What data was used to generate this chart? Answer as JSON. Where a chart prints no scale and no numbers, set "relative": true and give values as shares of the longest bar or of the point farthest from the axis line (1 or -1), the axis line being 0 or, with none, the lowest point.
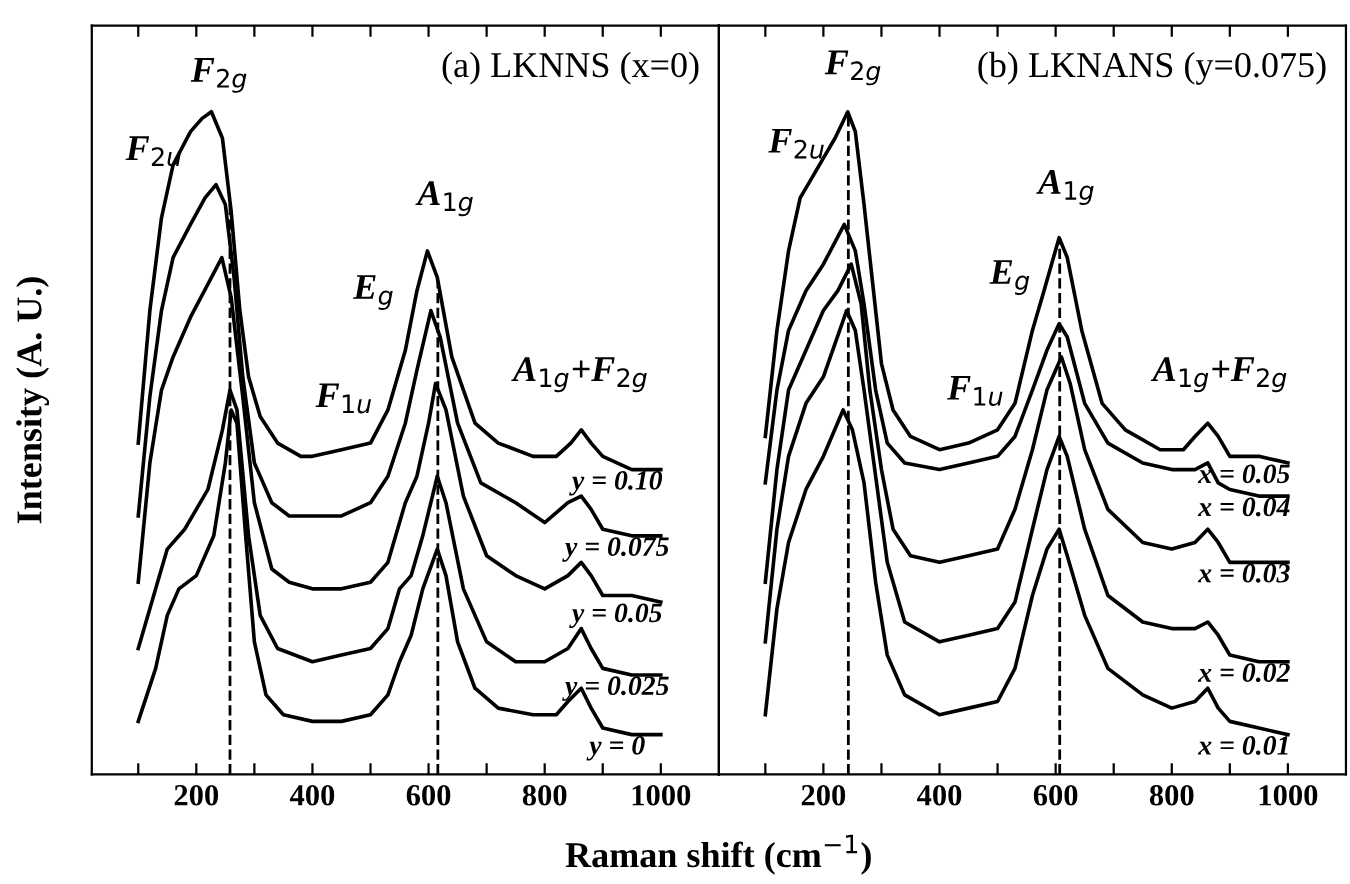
{
  "chart_data": [
    {
      "type": "line",
      "title": "(a) LKNNS (x=0)",
      "xlabel": "Raman shift (cm$^{−1}$)",
      "ylabel": "Intensity (A. U.)",
      "relative": true,
      "xlim": [
        20,
        1100
      ],
      "xticks": [
        {
          "value": 100,
          "label": null
        },
        200,
        {
          "value": 300,
          "label": null
        },
        400,
        {
          "value": 500,
          "label": null
        },
        600,
        {
          "value": 700,
          "label": null
        },
        800,
        {
          "value": 900,
          "label": null
        },
        1000
      ],
      "tick_labels": "x",
      "grid": false,
      "legend": false,
      "marker": "none",
      "line_style": "solid",
      "series": [
        {
          "name": "y = 0.10",
          "color": "#000000",
          "x": [
            100,
            120,
            140,
            160,
            190,
            210,
            226,
            245,
            260,
            275,
            290,
            310,
            340,
            380,
            400,
            450,
            500,
            530,
            560,
            580,
            598,
            615,
            640,
            680,
            720,
            780,
            820,
            845,
            863,
            880,
            900,
            950,
            1000
          ],
          "values": [
            0.5,
            0.7,
            0.84,
            0.92,
            0.97,
            0.99,
            1.0,
            0.96,
            0.85,
            0.7,
            0.6,
            0.54,
            0.5,
            0.48,
            0.48,
            0.49,
            0.5,
            0.55,
            0.64,
            0.73,
            0.79,
            0.75,
            0.63,
            0.53,
            0.5,
            0.48,
            0.48,
            0.5,
            0.52,
            0.5,
            0.48,
            0.46,
            0.46
          ]
        },
        {
          "name": "y = 0.075",
          "color": "#000000",
          "x": [
            100,
            120,
            140,
            160,
            190,
            215,
            234,
            250,
            265,
            280,
            300,
            330,
            360,
            400,
            450,
            500,
            530,
            560,
            580,
            604,
            620,
            650,
            690,
            750,
            800,
            840,
            863,
            880,
            900,
            950,
            1000
          ],
          "values": [
            0.39,
            0.57,
            0.7,
            0.78,
            0.83,
            0.87,
            0.89,
            0.86,
            0.75,
            0.6,
            0.47,
            0.41,
            0.39,
            0.39,
            0.39,
            0.41,
            0.45,
            0.53,
            0.61,
            0.7,
            0.66,
            0.53,
            0.44,
            0.41,
            0.38,
            0.41,
            0.42,
            0.4,
            0.37,
            0.36,
            0.36
          ]
        },
        {
          "name": "y = 0.05",
          "color": "#000000",
          "x": [
            100,
            120,
            140,
            160,
            190,
            220,
            244,
            260,
            280,
            300,
            330,
            360,
            400,
            450,
            500,
            530,
            560,
            580,
            600,
            612,
            630,
            660,
            700,
            750,
            800,
            840,
            863,
            880,
            900,
            950,
            1000
          ],
          "values": [
            0.29,
            0.47,
            0.58,
            0.63,
            0.69,
            0.74,
            0.78,
            0.72,
            0.57,
            0.41,
            0.31,
            0.29,
            0.28,
            0.28,
            0.29,
            0.32,
            0.41,
            0.45,
            0.53,
            0.59,
            0.55,
            0.42,
            0.33,
            0.3,
            0.28,
            0.3,
            0.32,
            0.3,
            0.27,
            0.27,
            0.26
          ]
        },
        {
          "name": "y = 0.025",
          "color": "#000000",
          "x": [
            100,
            130,
            150,
            180,
            220,
            245,
            258,
            270,
            290,
            310,
            340,
            400,
            450,
            500,
            530,
            550,
            570,
            590,
            615,
            630,
            660,
            700,
            750,
            800,
            840,
            863,
            880,
            900,
            950,
            1000
          ],
          "values": [
            0.19,
            0.28,
            0.34,
            0.37,
            0.43,
            0.52,
            0.58,
            0.55,
            0.36,
            0.24,
            0.19,
            0.17,
            0.18,
            0.19,
            0.22,
            0.28,
            0.3,
            0.36,
            0.45,
            0.41,
            0.28,
            0.2,
            0.17,
            0.17,
            0.19,
            0.22,
            0.19,
            0.16,
            0.15,
            0.15
          ]
        },
        {
          "name": "y = 0",
          "color": "#000000",
          "x": [
            100,
            130,
            150,
            170,
            200,
            230,
            250,
            260,
            270,
            285,
            300,
            320,
            350,
            400,
            450,
            500,
            530,
            550,
            570,
            590,
            615,
            630,
            650,
            680,
            720,
            780,
            820,
            840,
            863,
            880,
            900,
            950,
            1000
          ],
          "values": [
            0.08,
            0.16,
            0.24,
            0.28,
            0.3,
            0.36,
            0.47,
            0.55,
            0.53,
            0.36,
            0.2,
            0.12,
            0.09,
            0.08,
            0.08,
            0.09,
            0.12,
            0.17,
            0.21,
            0.28,
            0.34,
            0.3,
            0.2,
            0.13,
            0.1,
            0.09,
            0.09,
            0.11,
            0.13,
            0.1,
            0.07,
            0.06,
            0.06
          ]
        }
      ],
      "ref_lines": [
        {
          "axis": "x",
          "value": 258,
          "line_style": "dashed",
          "color": "#000000"
        },
        {
          "axis": "x",
          "value": 616,
          "line_style": "dashed",
          "color": "#000000"
        }
      ],
      "annotations": [
        "F$_{2g}$",
        "F$_{2u}$",
        "A$_{1g}$",
        "E$_{g}$",
        "F$_{1u}$",
        "A$_{1g}$+F$_{2g}$"
      ]
    },
    {
      "type": "line",
      "title": "(b) LKNANS (y=0.075)",
      "relative": true,
      "xlim": [
        20,
        1100
      ],
      "xticks": [
        {
          "value": 100,
          "label": null
        },
        200,
        {
          "value": 300,
          "label": null
        },
        400,
        {
          "value": 500,
          "label": null
        },
        600,
        {
          "value": 700,
          "label": null
        },
        800,
        {
          "value": 900,
          "label": null
        },
        1000
      ],
      "tick_labels": "x",
      "grid": false,
      "legend": false,
      "marker": "none",
      "line_style": "solid",
      "series": [
        {
          "name": "x = 0.05",
          "color": "#000000",
          "x": [
            100,
            120,
            140,
            160,
            180,
            200,
            220,
            242,
            255,
            270,
            285,
            300,
            320,
            350,
            400,
            450,
            500,
            530,
            560,
            580,
            606,
            620,
            645,
            680,
            720,
            780,
            820,
            840,
            862,
            880,
            900,
            950,
            1000
          ],
          "values": [
            0.51,
            0.67,
            0.79,
            0.87,
            0.9,
            0.93,
            0.96,
            1.0,
            0.97,
            0.86,
            0.74,
            0.62,
            0.55,
            0.51,
            0.49,
            0.5,
            0.52,
            0.56,
            0.67,
            0.73,
            0.81,
            0.78,
            0.67,
            0.56,
            0.52,
            0.49,
            0.49,
            0.51,
            0.53,
            0.51,
            0.48,
            0.48,
            0.47
          ]
        },
        {
          "name": "x = 0.04",
          "color": "#000000",
          "x": [
            100,
            120,
            140,
            170,
            200,
            236,
            255,
            270,
            290,
            310,
            340,
            400,
            450,
            500,
            530,
            560,
            585,
            606,
            620,
            650,
            690,
            750,
            800,
            840,
            862,
            880,
            900,
            950,
            1000
          ],
          "values": [
            0.44,
            0.58,
            0.67,
            0.73,
            0.77,
            0.83,
            0.79,
            0.71,
            0.58,
            0.5,
            0.47,
            0.46,
            0.47,
            0.48,
            0.51,
            0.58,
            0.64,
            0.68,
            0.66,
            0.56,
            0.5,
            0.47,
            0.46,
            0.46,
            0.47,
            0.44,
            0.43,
            0.42,
            0.42
          ]
        },
        {
          "name": "x = 0.03",
          "color": "#000000",
          "x": [
            100,
            120,
            140,
            170,
            200,
            225,
            248,
            265,
            280,
            300,
            320,
            350,
            400,
            450,
            500,
            530,
            560,
            585,
            610,
            625,
            650,
            690,
            750,
            800,
            840,
            862,
            880,
            900,
            950,
            1000
          ],
          "values": [
            0.29,
            0.46,
            0.58,
            0.64,
            0.7,
            0.73,
            0.77,
            0.71,
            0.58,
            0.46,
            0.37,
            0.33,
            0.32,
            0.33,
            0.34,
            0.4,
            0.49,
            0.58,
            0.63,
            0.59,
            0.49,
            0.4,
            0.35,
            0.34,
            0.35,
            0.37,
            0.35,
            0.32,
            0.32,
            0.32
          ]
        },
        {
          "name": "x = 0.02",
          "color": "#000000",
          "x": [
            100,
            120,
            140,
            170,
            200,
            240,
            255,
            270,
            290,
            310,
            340,
            400,
            450,
            500,
            530,
            560,
            585,
            606,
            620,
            650,
            690,
            750,
            800,
            840,
            862,
            880,
            900,
            950,
            1000
          ],
          "values": [
            0.2,
            0.37,
            0.48,
            0.56,
            0.6,
            0.7,
            0.67,
            0.58,
            0.45,
            0.32,
            0.23,
            0.2,
            0.21,
            0.22,
            0.26,
            0.37,
            0.46,
            0.51,
            0.48,
            0.37,
            0.27,
            0.23,
            0.22,
            0.22,
            0.23,
            0.21,
            0.18,
            0.17,
            0.17
          ]
        },
        {
          "name": "x = 0.01",
          "color": "#000000",
          "x": [
            100,
            120,
            140,
            170,
            200,
            234,
            250,
            270,
            290,
            310,
            340,
            400,
            450,
            500,
            530,
            560,
            585,
            606,
            620,
            650,
            690,
            750,
            800,
            840,
            862,
            880,
            900,
            950,
            1000
          ],
          "values": [
            0.09,
            0.25,
            0.35,
            0.43,
            0.48,
            0.55,
            0.52,
            0.44,
            0.29,
            0.18,
            0.12,
            0.09,
            0.1,
            0.11,
            0.16,
            0.27,
            0.34,
            0.37,
            0.33,
            0.24,
            0.16,
            0.12,
            0.1,
            0.11,
            0.13,
            0.1,
            0.08,
            0.07,
            0.06
          ]
        }
      ],
      "ref_lines": [
        {
          "axis": "x",
          "value": 243,
          "line_style": "dashed",
          "color": "#000000"
        },
        {
          "axis": "x",
          "value": 607,
          "line_style": "dashed",
          "color": "#000000"
        }
      ],
      "annotations": [
        "F$_{2g}$",
        "F$_{2u}$",
        "A$_{1g}$",
        "E$_{g}$",
        "F$_{1u}$",
        "A$_{1g}$+F$_{2g}$"
      ]
    }
  ]
}
